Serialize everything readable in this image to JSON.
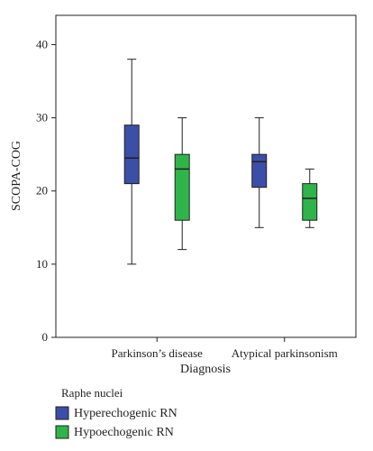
{
  "chart_data": {
    "type": "box",
    "xlabel": "Diagnosis",
    "ylabel": "SCOPA-COG",
    "ylim": [
      0,
      44
    ],
    "yticks": [
      0,
      10,
      20,
      30,
      40
    ],
    "categories": [
      "Parkinson’s disease",
      "Atypical parkinsonism"
    ],
    "legend": {
      "title": "Raphe nuclei",
      "position": "bottom-left"
    },
    "series": [
      {
        "name": "Hyperechogenic RN",
        "color": "#3b4fa8",
        "boxes": [
          {
            "min": 10,
            "q1": 21,
            "median": 24.5,
            "q3": 29,
            "max": 38
          },
          {
            "min": 15,
            "q1": 20.5,
            "median": 24,
            "q3": 25,
            "max": 30
          }
        ]
      },
      {
        "name": "Hypoechogenic RN",
        "color": "#2fb44a",
        "boxes": [
          {
            "min": 12,
            "q1": 16,
            "median": 23,
            "q3": 25,
            "max": 30
          },
          {
            "min": 15,
            "q1": 16,
            "median": 19,
            "q3": 21,
            "max": 23
          }
        ]
      }
    ],
    "grid": false
  }
}
